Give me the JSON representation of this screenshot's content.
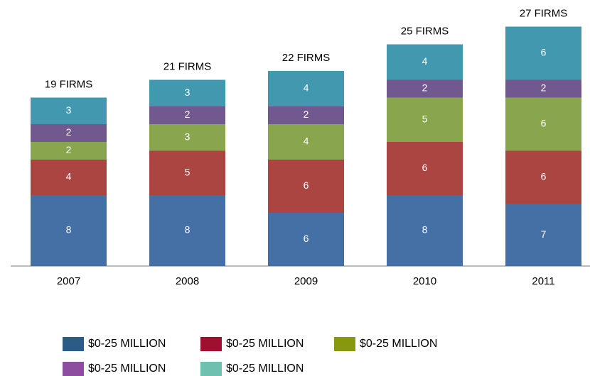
{
  "chart_data": {
    "type": "stacked_bar",
    "categories": [
      "2007",
      "2008",
      "2009",
      "2010",
      "2011"
    ],
    "total_labels": [
      "19 FIRMS",
      "21 FIRMS",
      "22 FIRMS",
      "25 FIRMS",
      "27 FIRMS"
    ],
    "series": [
      {
        "name": "$0-25 MILLION",
        "color": "#4470a6",
        "legend_color": "#2d5b87",
        "values": [
          8,
          8,
          6,
          8,
          7
        ]
      },
      {
        "name": "$0-25 MILLION",
        "color": "#aa4542",
        "legend_color": "#9e0f30",
        "values": [
          4,
          5,
          6,
          6,
          6
        ]
      },
      {
        "name": "$0-25 MILLION",
        "color": "#89a54e",
        "legend_color": "#87980c",
        "values": [
          2,
          3,
          4,
          5,
          6
        ]
      },
      {
        "name": "$0-25 MILLION",
        "color": "#71588f",
        "legend_color": "#8e4e9f",
        "values": [
          2,
          2,
          2,
          2,
          2
        ]
      },
      {
        "name": "$0-25 MILLION",
        "color": "#4198af",
        "legend_color": "#6fc0ae",
        "values": [
          3,
          3,
          4,
          4,
          6
        ]
      }
    ]
  }
}
